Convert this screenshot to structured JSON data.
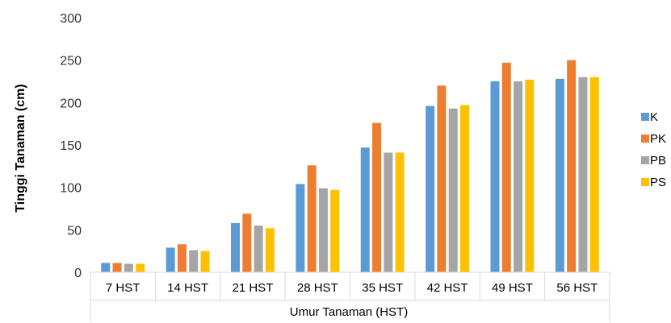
{
  "chart_data": {
    "type": "bar",
    "categories": [
      "7 HST",
      "14 HST",
      "21 HST",
      "28 HST",
      "35 HST",
      "42 HST",
      "49 HST",
      "56 HST"
    ],
    "series": [
      {
        "name": "K",
        "color": "#5B9BD5",
        "values": [
          11,
          29,
          58,
          104,
          147,
          196,
          225,
          228
        ]
      },
      {
        "name": "PK",
        "color": "#ED7D31",
        "values": [
          11,
          33,
          69,
          126,
          176,
          220,
          247,
          250
        ]
      },
      {
        "name": "PB",
        "color": "#A5A5A5",
        "values": [
          10,
          26,
          55,
          99,
          141,
          193,
          225,
          230
        ]
      },
      {
        "name": "PS",
        "color": "#FFC000",
        "values": [
          10,
          25,
          52,
          97,
          141,
          197,
          227,
          230
        ]
      }
    ],
    "title": "",
    "xlabel": "Umur Tanaman (HST)",
    "ylabel": "Tinggi Tanaman (cm)",
    "ylim": [
      0,
      300
    ],
    "yticks": [
      "0",
      "50",
      "100",
      "150",
      "200",
      "250",
      "300"
    ],
    "grid": false,
    "legend_position": "right"
  }
}
